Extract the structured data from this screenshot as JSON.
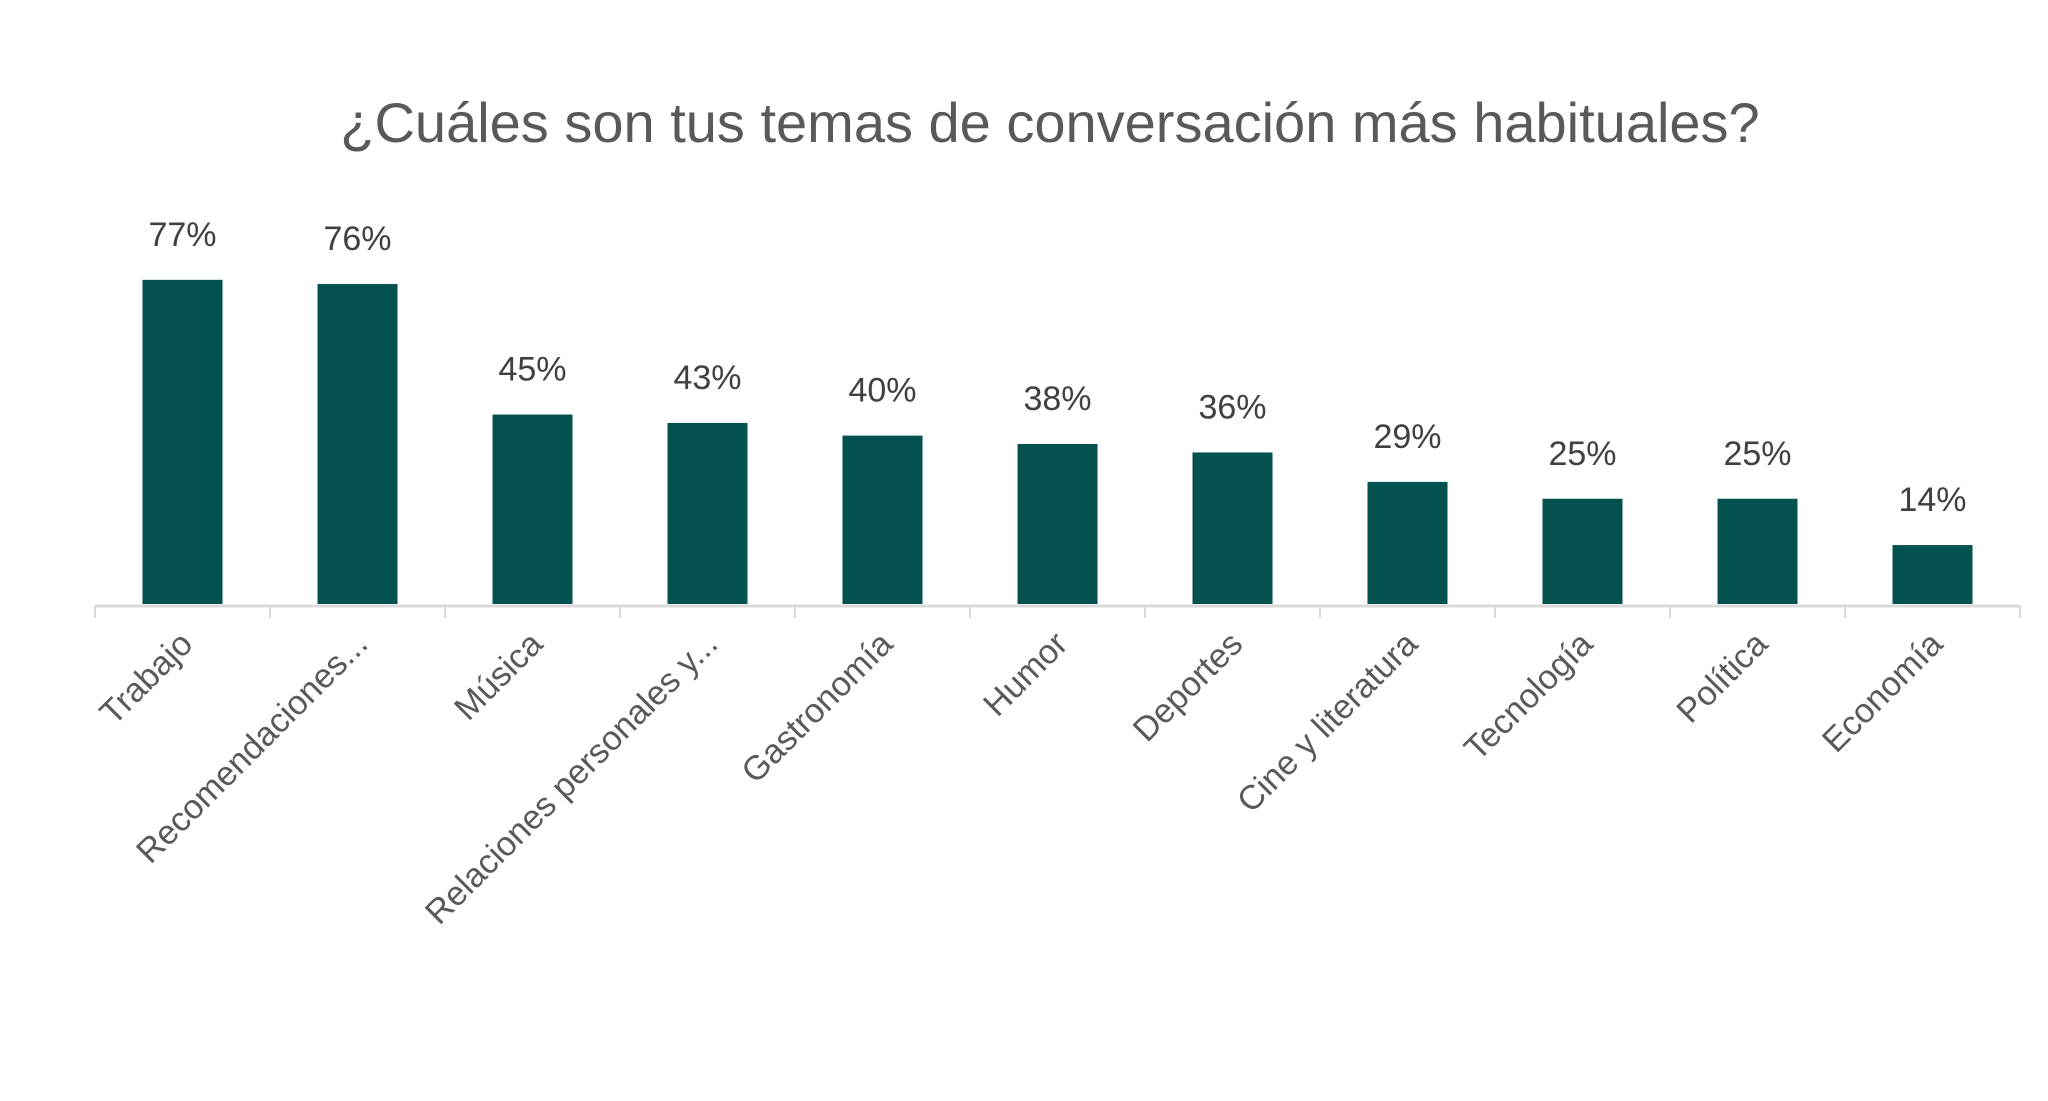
{
  "chart_data": {
    "type": "bar",
    "title": "¿Cuáles son tus temas de conversación más habituales?",
    "categories": [
      "Trabajo",
      "Recomendaciones...",
      "Música",
      "Relaciones personales y...",
      "Gastronomía",
      "Humor",
      "Deportes",
      "Cine y literatura",
      "Tecnología",
      "Política",
      "Economía"
    ],
    "values": [
      77,
      76,
      45,
      43,
      40,
      38,
      36,
      29,
      25,
      25,
      14
    ],
    "data_labels": [
      "77%",
      "76%",
      "45%",
      "43%",
      "40%",
      "38%",
      "36%",
      "29%",
      "25%",
      "25%",
      "14%"
    ],
    "xlabel": "",
    "ylabel": "",
    "ylim": [
      0,
      80
    ],
    "grid": false,
    "legend": "none",
    "bar_color": "#03524f"
  }
}
